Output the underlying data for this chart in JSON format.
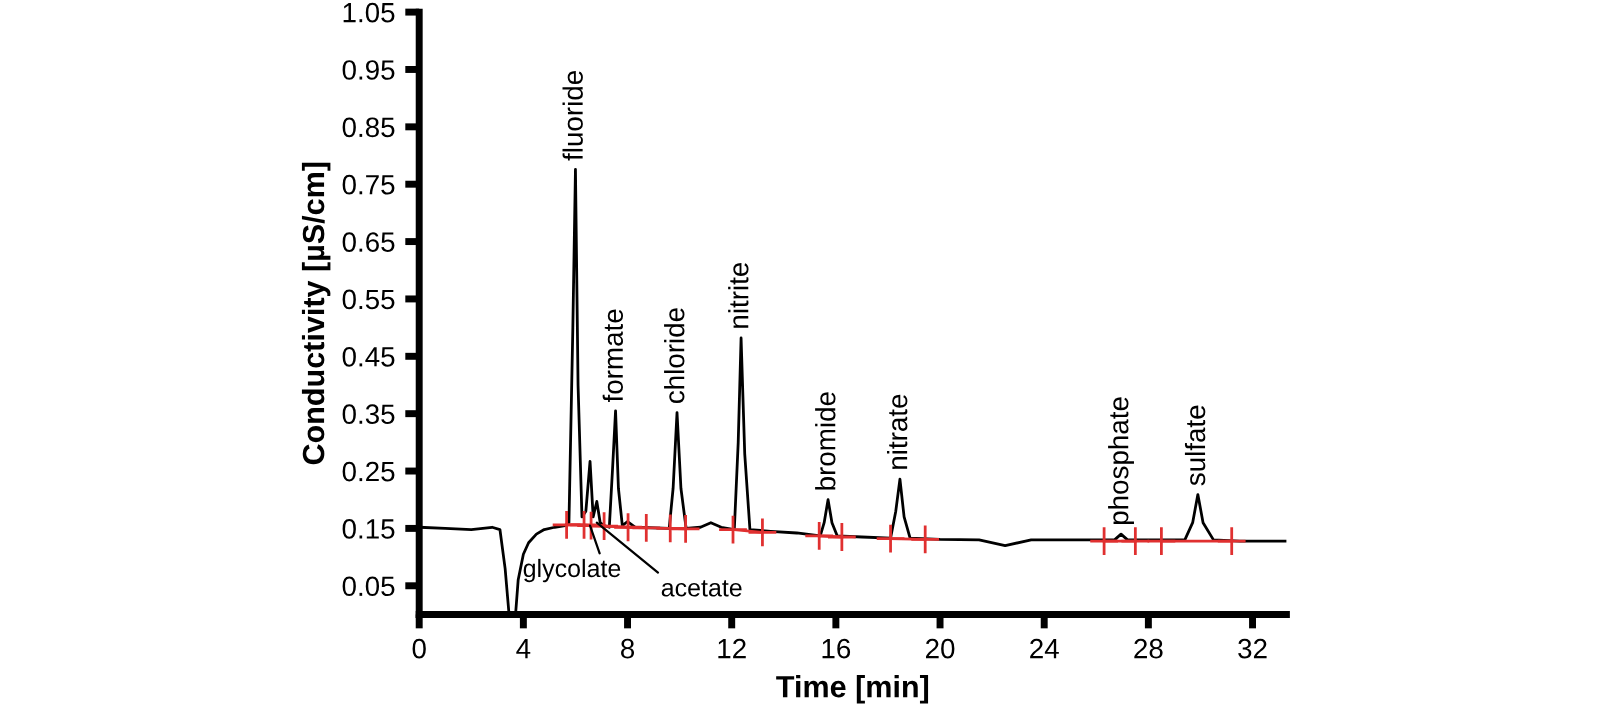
{
  "chart_data": {
    "type": "line",
    "xlabel": "Time [min]",
    "ylabel": "Conductivity [µS/cm]",
    "xlim": [
      0,
      33.3
    ],
    "ylim": [
      0,
      1.05
    ],
    "xticks": [
      0,
      4,
      8,
      12,
      16,
      20,
      24,
      28,
      32
    ],
    "yticks": [
      0.05,
      0.15,
      0.25,
      0.35,
      0.45,
      0.55,
      0.65,
      0.75,
      0.85,
      0.95,
      1.05
    ],
    "grid": false,
    "legend": false,
    "series": [
      {
        "color": "#000000",
        "marker": "none",
        "x": [
          0,
          1,
          2,
          2.8,
          3.1,
          3.3,
          3.45,
          3.7,
          3.8,
          4.0,
          4.2,
          4.5,
          4.8,
          5.2,
          5.6,
          5.75,
          5.9,
          6.0,
          6.1,
          6.25,
          6.4,
          6.56,
          6.68,
          6.82,
          6.95,
          7.1,
          7.3,
          7.42,
          7.54,
          7.65,
          7.8,
          8.0,
          8.3,
          9.6,
          9.75,
          9.9,
          10.05,
          10.25,
          10.8,
          11.2,
          11.6,
          12.1,
          12.25,
          12.36,
          12.5,
          12.7,
          13.5,
          14.5,
          15.4,
          15.55,
          15.7,
          15.85,
          16.05,
          17.0,
          18.1,
          18.3,
          18.46,
          18.62,
          18.85,
          20.0,
          21.5,
          22.5,
          23.5,
          26.0,
          26.7,
          26.95,
          27.2,
          29.4,
          29.7,
          29.9,
          30.1,
          30.5,
          31.5,
          33.3
        ],
        "values": [
          0.152,
          0.15,
          0.148,
          0.152,
          0.148,
          0.08,
          0.0,
          0.0,
          0.06,
          0.105,
          0.125,
          0.14,
          0.148,
          0.152,
          0.155,
          0.16,
          0.5,
          0.776,
          0.4,
          0.17,
          0.18,
          0.267,
          0.17,
          0.197,
          0.16,
          0.155,
          0.152,
          0.25,
          0.355,
          0.22,
          0.155,
          0.162,
          0.152,
          0.15,
          0.22,
          0.352,
          0.22,
          0.15,
          0.152,
          0.16,
          0.152,
          0.148,
          0.3,
          0.482,
          0.28,
          0.148,
          0.145,
          0.142,
          0.137,
          0.16,
          0.2,
          0.16,
          0.137,
          0.135,
          0.133,
          0.18,
          0.236,
          0.17,
          0.133,
          0.131,
          0.13,
          0.12,
          0.13,
          0.13,
          0.13,
          0.14,
          0.13,
          0.13,
          0.16,
          0.209,
          0.16,
          0.13,
          0.128,
          0.128
        ]
      },
      {
        "color": "#e03030",
        "marker": "cross",
        "x": [
          5.66,
          6.33,
          6.6,
          7.1,
          8.02,
          8.72,
          9.2,
          9.64,
          10.23,
          11.0,
          12.05,
          13.18,
          14.3,
          15.36,
          16.23,
          17.2,
          18.1,
          19.43,
          23.0,
          26.3,
          27.5,
          28.0,
          28.5,
          31.2
        ],
        "values": [
          0.156,
          0.156,
          0.155,
          0.154,
          0.152,
          0.151,
          null,
          0.15,
          0.149,
          null,
          0.148,
          0.143,
          null,
          0.137,
          0.135,
          null,
          0.132,
          0.131,
          null,
          0.128,
          0.128,
          null,
          0.128,
          0.128
        ]
      }
    ],
    "annotations": [
      {
        "text": "fluoride",
        "x": 6.0,
        "y": 0.776
      },
      {
        "text": "formate",
        "x": 7.54,
        "y": 0.355
      },
      {
        "text": "chloride",
        "x": 9.9,
        "y": 0.352
      },
      {
        "text": "nitrite",
        "x": 12.36,
        "y": 0.482
      },
      {
        "text": "bromide",
        "x": 15.7,
        "y": 0.2
      },
      {
        "text": "nitrate",
        "x": 18.46,
        "y": 0.236
      },
      {
        "text": "phosphate",
        "x": 26.95,
        "y": 0.14
      },
      {
        "text": "sulfate",
        "x": 29.9,
        "y": 0.209
      },
      {
        "text": "glycolate",
        "x": 6.56,
        "y": 0.155
      },
      {
        "text": "acetate",
        "x": 6.82,
        "y": 0.16
      }
    ]
  }
}
